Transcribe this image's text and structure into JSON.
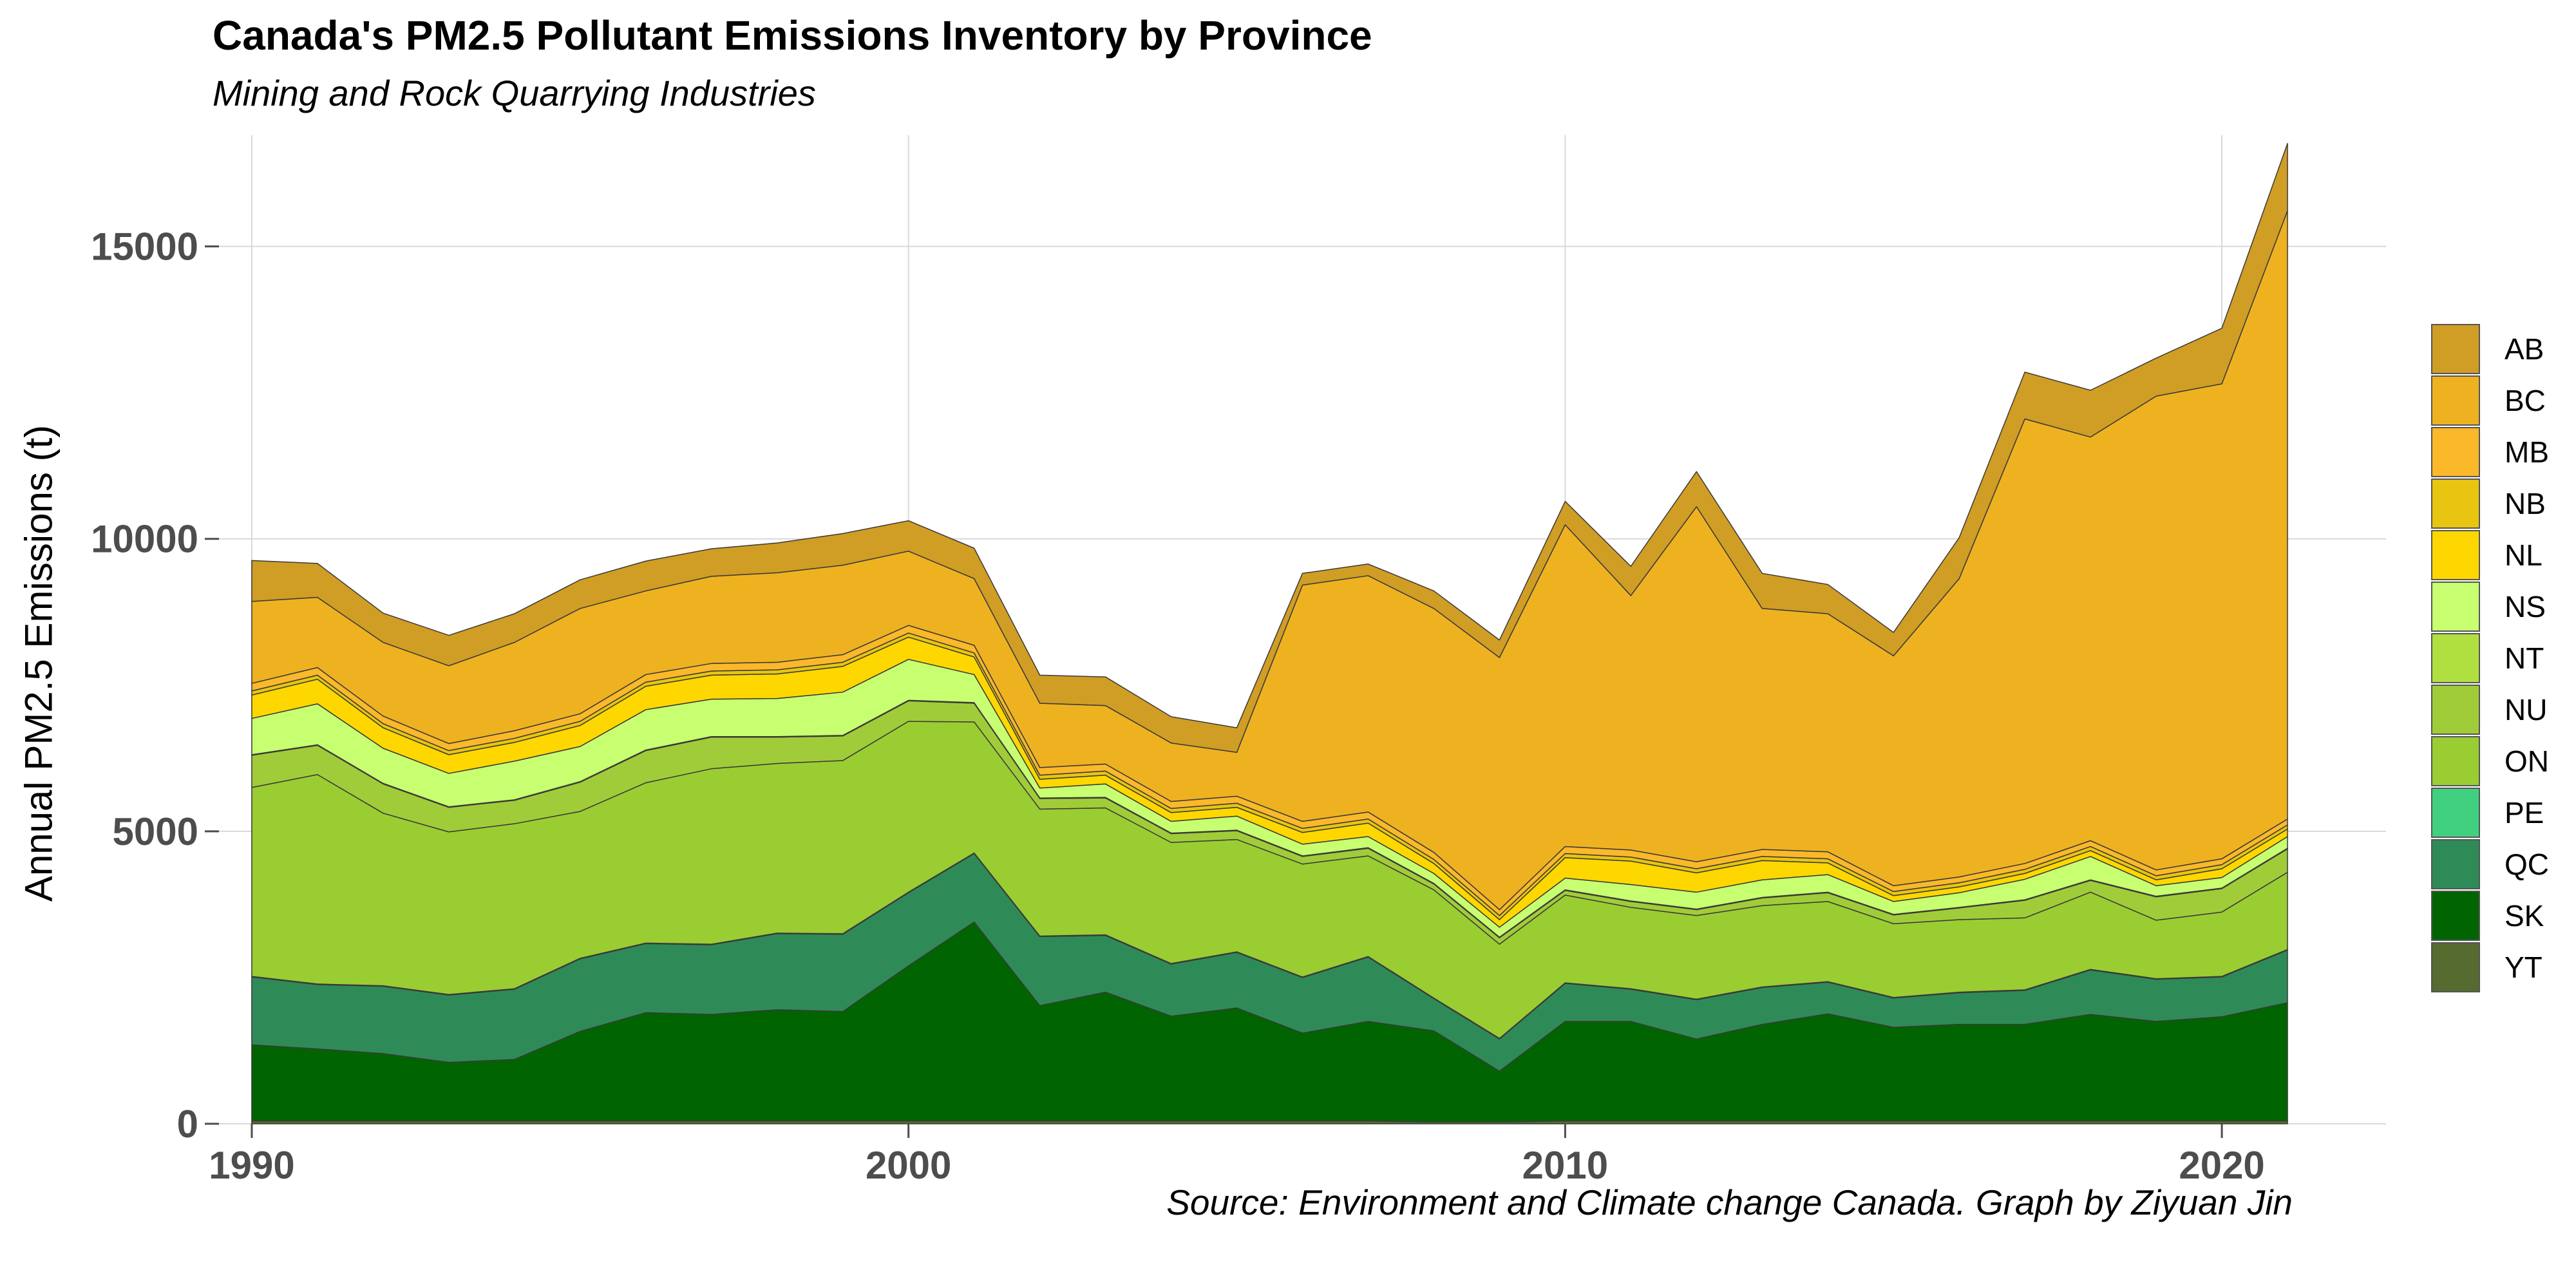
{
  "chart_data": {
    "type": "area",
    "stacked": true,
    "title": "Canada's PM2.5 Pollutant Emissions Inventory by Province",
    "subtitle": "Mining and Rock Quarrying Industries",
    "caption": "Source: Environment and Climate change Canada. Graph by Ziyuan Jin",
    "xlabel": "",
    "ylabel": "Annual PM2.5 Emissions  (t)",
    "xlim": [
      1989.5,
      2022.5
    ],
    "ylim": [
      0,
      16900
    ],
    "grid": true,
    "legend_position": "right",
    "x_ticks": [
      1990,
      2000,
      2010,
      2020
    ],
    "y_ticks": [
      0,
      5000,
      10000,
      15000
    ],
    "x": [
      1990,
      1991,
      1992,
      1993,
      1994,
      1995,
      1996,
      1997,
      1998,
      1999,
      2000,
      2001,
      2002,
      2003,
      2004,
      2005,
      2006,
      2007,
      2008,
      2009,
      2010,
      2011,
      2012,
      2013,
      2014,
      2015,
      2016,
      2017,
      2018,
      2019,
      2020,
      2021
    ],
    "series": [
      {
        "name": "YT",
        "color": "#556b2f",
        "values": [
          50,
          50,
          50,
          50,
          50,
          50,
          50,
          50,
          50,
          50,
          50,
          50,
          50,
          50,
          50,
          50,
          50,
          50,
          30,
          30,
          50,
          50,
          50,
          50,
          50,
          50,
          50,
          50,
          50,
          50,
          50,
          50
        ]
      },
      {
        "name": "SK",
        "color": "#006400",
        "values": [
          1300,
          1230,
          1150,
          1000,
          1050,
          1530,
          1850,
          1820,
          1900,
          1870,
          2650,
          3400,
          1970,
          2200,
          1790,
          1930,
          1500,
          1700,
          1560,
          870,
          1700,
          1700,
          1400,
          1650,
          1830,
          1600,
          1650,
          1650,
          1820,
          1700,
          1780,
          2020
        ]
      },
      {
        "name": "QC",
        "color": "#2e8b57",
        "values": [
          1160,
          1100,
          1150,
          1150,
          1200,
          1240,
          1180,
          1190,
          1300,
          1320,
          1250,
          1170,
          1180,
          970,
          890,
          950,
          950,
          1100,
          550,
          550,
          650,
          550,
          670,
          630,
          540,
          500,
          540,
          580,
          760,
          720,
          680,
          900
        ]
      },
      {
        "name": "PE",
        "color": "#40d080",
        "values": [
          10,
          10,
          10,
          10,
          10,
          10,
          10,
          10,
          10,
          10,
          10,
          10,
          10,
          10,
          10,
          10,
          10,
          10,
          10,
          10,
          10,
          10,
          10,
          10,
          10,
          10,
          10,
          10,
          10,
          10,
          10,
          10
        ]
      },
      {
        "name": "ON",
        "color": "#9acd32",
        "values": [
          3230,
          3580,
          2950,
          2780,
          2820,
          2510,
          2740,
          3000,
          2900,
          2960,
          2920,
          2240,
          2170,
          2170,
          2070,
          1920,
          1930,
          1720,
          1850,
          1610,
          1500,
          1390,
          1430,
          1390,
          1370,
          1260,
          1240,
          1230,
          1320,
          1000,
          1100,
          1320
        ]
      },
      {
        "name": "NU",
        "color": "#a1cc3a",
        "values": [
          550,
          500,
          500,
          420,
          400,
          500,
          550,
          540,
          450,
          420,
          350,
          320,
          180,
          170,
          150,
          150,
          130,
          130,
          100,
          110,
          80,
          100,
          100,
          130,
          150,
          150,
          200,
          300,
          200,
          400,
          400,
          400
        ]
      },
      {
        "name": "NT",
        "color": "#b0e040",
        "values": [
          10,
          10,
          10,
          10,
          10,
          10,
          10,
          10,
          10,
          10,
          10,
          10,
          10,
          10,
          10,
          10,
          10,
          10,
          10,
          10,
          10,
          10,
          10,
          10,
          10,
          10,
          10,
          10,
          10,
          10,
          10,
          10
        ]
      },
      {
        "name": "NS",
        "color": "#c8ff70",
        "values": [
          620,
          700,
          600,
          570,
          660,
          600,
          690,
          640,
          650,
          740,
          700,
          480,
          170,
          230,
          200,
          240,
          200,
          190,
          170,
          170,
          200,
          280,
          290,
          300,
          300,
          220,
          250,
          350,
          400,
          180,
          180,
          200
        ]
      },
      {
        "name": "NL",
        "color": "#ffd700",
        "values": [
          400,
          420,
          350,
          320,
          320,
          360,
          400,
          410,
          420,
          440,
          380,
          300,
          150,
          150,
          150,
          150,
          200,
          230,
          170,
          130,
          350,
          400,
          330,
          330,
          200,
          100,
          100,
          100,
          100,
          100,
          150,
          130
        ]
      },
      {
        "name": "NB",
        "color": "#e8c510",
        "values": [
          70,
          70,
          70,
          70,
          70,
          70,
          70,
          70,
          70,
          70,
          70,
          70,
          70,
          70,
          70,
          70,
          70,
          70,
          70,
          70,
          70,
          70,
          70,
          70,
          70,
          70,
          70,
          70,
          70,
          70,
          70,
          70
        ]
      },
      {
        "name": "MB",
        "color": "#fbb829",
        "values": [
          130,
          130,
          130,
          120,
          130,
          130,
          130,
          130,
          130,
          130,
          130,
          130,
          130,
          120,
          120,
          120,
          120,
          120,
          120,
          100,
          120,
          120,
          120,
          120,
          120,
          100,
          100,
          100,
          100,
          100,
          100,
          100
        ]
      },
      {
        "name": "BC",
        "color": "#eeb221",
        "values": [
          1400,
          1200,
          1260,
          1330,
          1510,
          1800,
          1430,
          1490,
          1530,
          1530,
          1270,
          1140,
          1100,
          1000,
          1000,
          750,
          4040,
          4040,
          4170,
          4310,
          5500,
          4350,
          6070,
          4120,
          4070,
          3930,
          5100,
          7600,
          6900,
          8100,
          8120,
          10400
        ]
      },
      {
        "name": "AB",
        "color": "#d09d25",
        "values": [
          700,
          580,
          500,
          520,
          490,
          490,
          510,
          470,
          510,
          540,
          520,
          520,
          480,
          490,
          450,
          420,
          200,
          200,
          300,
          300,
          400,
          500,
          600,
          600,
          500,
          400,
          700,
          800,
          800,
          650,
          950,
          1150
        ]
      }
    ]
  }
}
